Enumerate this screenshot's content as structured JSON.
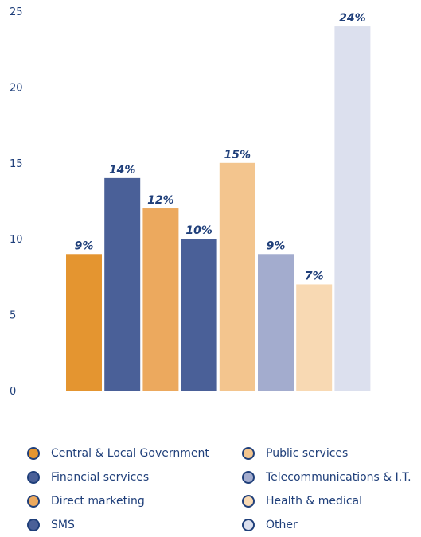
{
  "chart_data": {
    "type": "bar",
    "categories": [
      "Central & Local Government",
      "Financial services",
      "Direct marketing",
      "SMS",
      "Public services",
      "Telecommunications & I.T.",
      "Health & medical",
      "Other"
    ],
    "values": [
      9,
      14,
      12,
      10,
      15,
      9,
      7,
      24
    ],
    "data_labels": [
      "9%",
      "14%",
      "12%",
      "10%",
      "15%",
      "9%",
      "7%",
      "24%"
    ],
    "colors": [
      "#e49530",
      "#4a6098",
      "#eca95e",
      "#4a6098",
      "#f3c58e",
      "#a3acce",
      "#f8d9b3",
      "#dce0ee"
    ],
    "yticks": [
      "0",
      "5",
      "10",
      "15",
      "20",
      "25"
    ],
    "ylim": [
      0,
      25
    ],
    "grid": false,
    "legend_position": "bottom"
  }
}
